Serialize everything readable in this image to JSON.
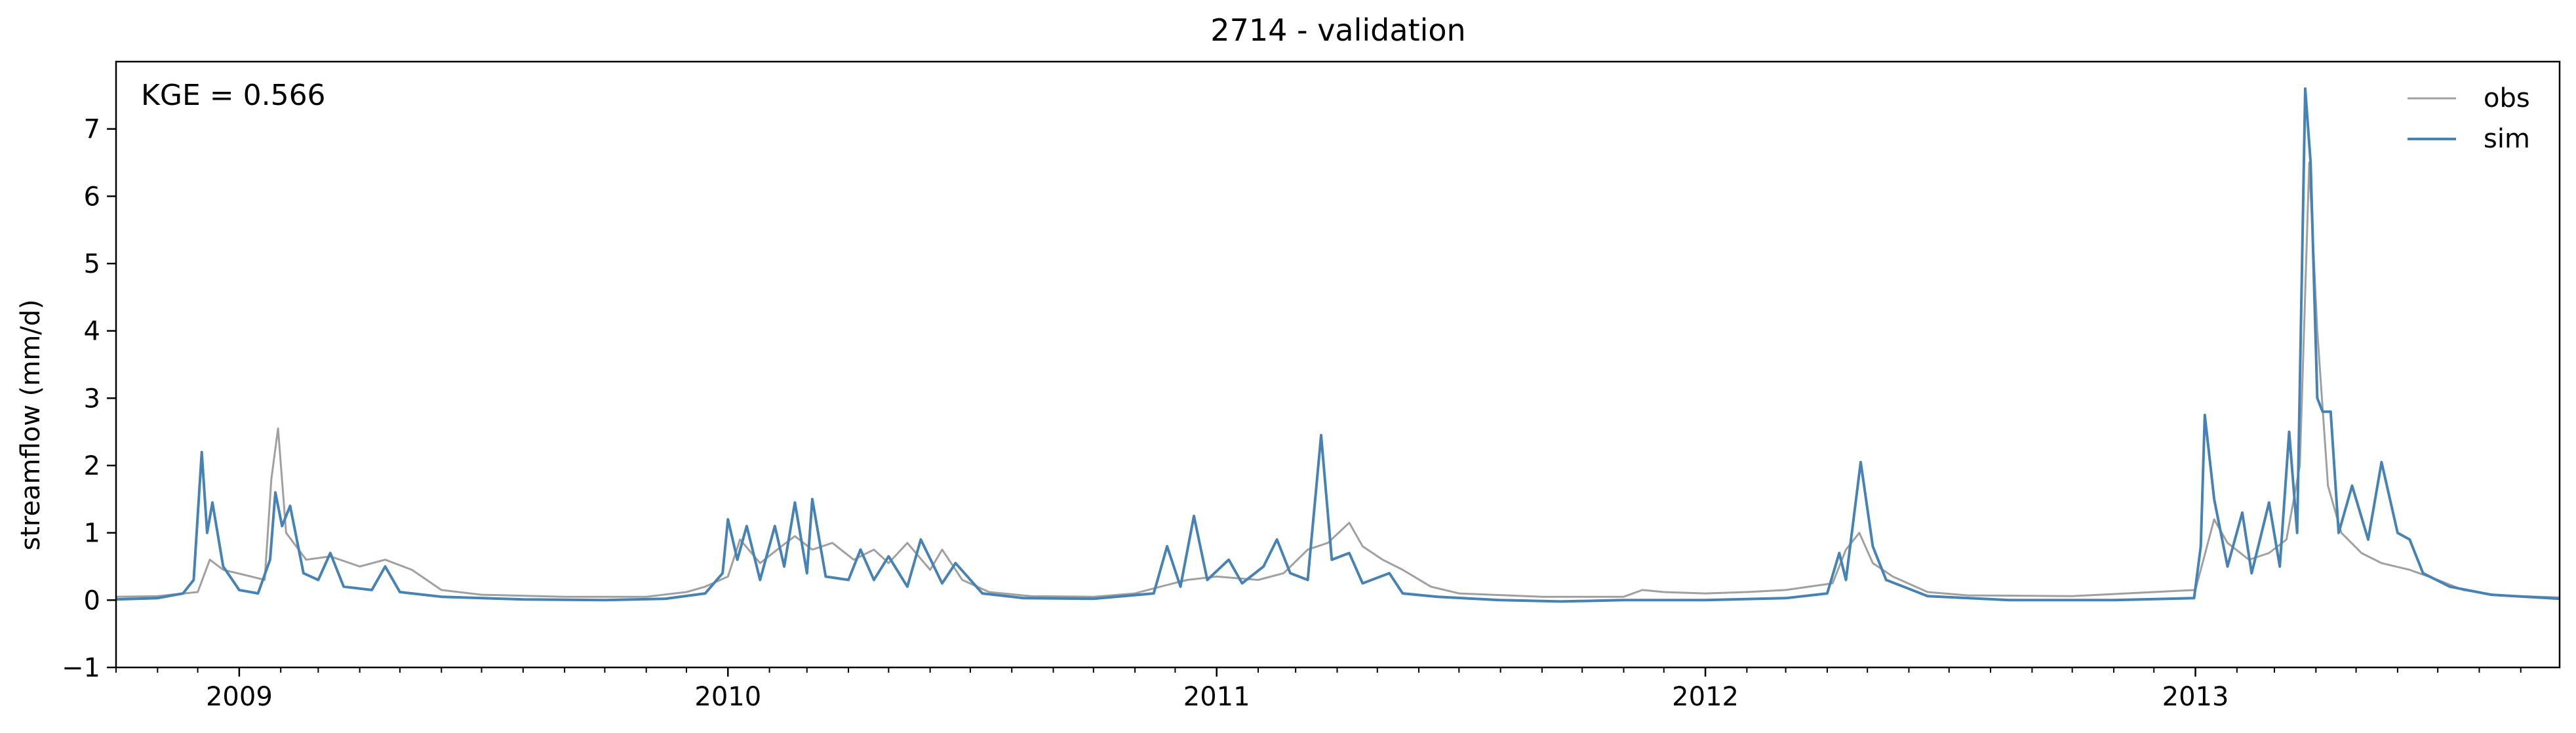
{
  "chart_data": {
    "type": "line",
    "title": "2714 - validation",
    "annotation": "KGE = 0.566",
    "xlabel": "",
    "ylabel": "streamflow (mm/d)",
    "xlim": [
      "2008-10-01",
      "2013-09-30"
    ],
    "ylim": [
      -1,
      8
    ],
    "y_ticks": [
      -1,
      0,
      1,
      2,
      3,
      4,
      5,
      6,
      7
    ],
    "x_ticks": [
      {
        "date": "2009-01-01",
        "label": "2009"
      },
      {
        "date": "2010-01-01",
        "label": "2010"
      },
      {
        "date": "2011-01-01",
        "label": "2011"
      },
      {
        "date": "2012-01-01",
        "label": "2012"
      },
      {
        "date": "2013-01-01",
        "label": "2013"
      }
    ],
    "grid": false,
    "legend_position": "upper right",
    "series": [
      {
        "name": "obs",
        "color": "#a0a0a0",
        "points": [
          [
            "2008-10-01",
            0.05
          ],
          [
            "2008-11-01",
            0.06
          ],
          [
            "2008-12-01",
            0.12
          ],
          [
            "2008-12-10",
            0.6
          ],
          [
            "2008-12-20",
            0.45
          ],
          [
            "2009-01-10",
            0.35
          ],
          [
            "2009-01-20",
            0.3
          ],
          [
            "2009-01-25",
            1.8
          ],
          [
            "2009-01-30",
            2.55
          ],
          [
            "2009-02-05",
            1.0
          ],
          [
            "2009-02-20",
            0.6
          ],
          [
            "2009-03-10",
            0.65
          ],
          [
            "2009-04-01",
            0.5
          ],
          [
            "2009-04-20",
            0.6
          ],
          [
            "2009-05-10",
            0.45
          ],
          [
            "2009-06-01",
            0.15
          ],
          [
            "2009-07-01",
            0.08
          ],
          [
            "2009-09-01",
            0.05
          ],
          [
            "2009-11-01",
            0.05
          ],
          [
            "2009-12-01",
            0.12
          ],
          [
            "2009-12-15",
            0.2
          ],
          [
            "2010-01-01",
            0.35
          ],
          [
            "2010-01-10",
            0.9
          ],
          [
            "2010-01-25",
            0.55
          ],
          [
            "2010-02-10",
            0.8
          ],
          [
            "2010-02-20",
            0.95
          ],
          [
            "2010-03-05",
            0.75
          ],
          [
            "2010-03-20",
            0.85
          ],
          [
            "2010-04-05",
            0.6
          ],
          [
            "2010-04-20",
            0.75
          ],
          [
            "2010-05-01",
            0.55
          ],
          [
            "2010-05-15",
            0.85
          ],
          [
            "2010-06-01",
            0.45
          ],
          [
            "2010-06-10",
            0.75
          ],
          [
            "2010-06-25",
            0.3
          ],
          [
            "2010-07-15",
            0.12
          ],
          [
            "2010-08-15",
            0.06
          ],
          [
            "2010-10-01",
            0.05
          ],
          [
            "2010-11-01",
            0.1
          ],
          [
            "2010-11-20",
            0.2
          ],
          [
            "2010-12-10",
            0.3
          ],
          [
            "2011-01-01",
            0.35
          ],
          [
            "2011-02-01",
            0.3
          ],
          [
            "2011-02-20",
            0.4
          ],
          [
            "2011-03-10",
            0.75
          ],
          [
            "2011-03-25",
            0.85
          ],
          [
            "2011-04-10",
            1.15
          ],
          [
            "2011-04-20",
            0.8
          ],
          [
            "2011-05-05",
            0.6
          ],
          [
            "2011-05-20",
            0.45
          ],
          [
            "2011-06-10",
            0.2
          ],
          [
            "2011-07-01",
            0.1
          ],
          [
            "2011-09-01",
            0.05
          ],
          [
            "2011-11-01",
            0.05
          ],
          [
            "2011-11-15",
            0.15
          ],
          [
            "2011-12-01",
            0.12
          ],
          [
            "2012-01-01",
            0.1
          ],
          [
            "2012-02-01",
            0.12
          ],
          [
            "2012-03-01",
            0.15
          ],
          [
            "2012-04-05",
            0.25
          ],
          [
            "2012-04-15",
            0.75
          ],
          [
            "2012-04-25",
            1.0
          ],
          [
            "2012-05-05",
            0.55
          ],
          [
            "2012-05-20",
            0.35
          ],
          [
            "2012-06-15",
            0.12
          ],
          [
            "2012-07-15",
            0.07
          ],
          [
            "2012-10-01",
            0.06
          ],
          [
            "2012-12-01",
            0.12
          ],
          [
            "2013-01-01",
            0.15
          ],
          [
            "2013-01-15",
            1.2
          ],
          [
            "2013-01-25",
            0.85
          ],
          [
            "2013-02-10",
            0.6
          ],
          [
            "2013-02-25",
            0.7
          ],
          [
            "2013-03-10",
            0.9
          ],
          [
            "2013-03-20",
            2.0
          ],
          [
            "2013-03-27",
            6.5
          ],
          [
            "2013-04-02",
            4.0
          ],
          [
            "2013-04-10",
            1.7
          ],
          [
            "2013-04-20",
            1.0
          ],
          [
            "2013-05-05",
            0.7
          ],
          [
            "2013-05-20",
            0.55
          ],
          [
            "2013-06-10",
            0.45
          ],
          [
            "2013-07-01",
            0.3
          ],
          [
            "2013-07-20",
            0.15
          ],
          [
            "2013-08-15",
            0.07
          ],
          [
            "2013-09-30",
            0.04
          ]
        ]
      },
      {
        "name": "sim",
        "color": "#4682b4",
        "points": [
          [
            "2008-10-01",
            0.01
          ],
          [
            "2008-11-01",
            0.03
          ],
          [
            "2008-11-20",
            0.1
          ],
          [
            "2008-11-28",
            0.3
          ],
          [
            "2008-12-04",
            2.2
          ],
          [
            "2008-12-08",
            1.0
          ],
          [
            "2008-12-12",
            1.45
          ],
          [
            "2008-12-20",
            0.5
          ],
          [
            "2009-01-01",
            0.15
          ],
          [
            "2009-01-15",
            0.1
          ],
          [
            "2009-01-24",
            0.6
          ],
          [
            "2009-01-28",
            1.6
          ],
          [
            "2009-02-02",
            1.1
          ],
          [
            "2009-02-08",
            1.4
          ],
          [
            "2009-02-18",
            0.4
          ],
          [
            "2009-03-01",
            0.3
          ],
          [
            "2009-03-10",
            0.7
          ],
          [
            "2009-03-20",
            0.2
          ],
          [
            "2009-04-10",
            0.15
          ],
          [
            "2009-04-20",
            0.5
          ],
          [
            "2009-05-01",
            0.12
          ],
          [
            "2009-06-01",
            0.05
          ],
          [
            "2009-08-01",
            0.01
          ],
          [
            "2009-10-01",
            0.0
          ],
          [
            "2009-11-15",
            0.02
          ],
          [
            "2009-12-15",
            0.1
          ],
          [
            "2009-12-28",
            0.4
          ],
          [
            "2010-01-01",
            1.2
          ],
          [
            "2010-01-08",
            0.6
          ],
          [
            "2010-01-15",
            1.1
          ],
          [
            "2010-01-25",
            0.3
          ],
          [
            "2010-02-05",
            1.1
          ],
          [
            "2010-02-12",
            0.5
          ],
          [
            "2010-02-20",
            1.45
          ],
          [
            "2010-03-01",
            0.4
          ],
          [
            "2010-03-05",
            1.5
          ],
          [
            "2010-03-15",
            0.35
          ],
          [
            "2010-04-01",
            0.3
          ],
          [
            "2010-04-10",
            0.75
          ],
          [
            "2010-04-20",
            0.3
          ],
          [
            "2010-05-01",
            0.65
          ],
          [
            "2010-05-15",
            0.2
          ],
          [
            "2010-05-25",
            0.9
          ],
          [
            "2010-06-10",
            0.25
          ],
          [
            "2010-06-20",
            0.55
          ],
          [
            "2010-07-10",
            0.1
          ],
          [
            "2010-08-10",
            0.03
          ],
          [
            "2010-10-01",
            0.02
          ],
          [
            "2010-11-15",
            0.1
          ],
          [
            "2010-11-25",
            0.8
          ],
          [
            "2010-12-05",
            0.2
          ],
          [
            "2010-12-15",
            1.25
          ],
          [
            "2010-12-25",
            0.3
          ],
          [
            "2011-01-10",
            0.6
          ],
          [
            "2011-01-20",
            0.25
          ],
          [
            "2011-02-05",
            0.5
          ],
          [
            "2011-02-15",
            0.9
          ],
          [
            "2011-02-25",
            0.4
          ],
          [
            "2011-03-10",
            0.3
          ],
          [
            "2011-03-20",
            2.45
          ],
          [
            "2011-03-28",
            0.6
          ],
          [
            "2011-04-10",
            0.7
          ],
          [
            "2011-04-20",
            0.25
          ],
          [
            "2011-05-10",
            0.4
          ],
          [
            "2011-05-20",
            0.1
          ],
          [
            "2011-06-15",
            0.05
          ],
          [
            "2011-08-01",
            0.0
          ],
          [
            "2011-09-15",
            -0.02
          ],
          [
            "2011-11-01",
            0.0
          ],
          [
            "2012-01-01",
            0.0
          ],
          [
            "2012-03-01",
            0.03
          ],
          [
            "2012-04-01",
            0.1
          ],
          [
            "2012-04-10",
            0.7
          ],
          [
            "2012-04-15",
            0.3
          ],
          [
            "2012-04-26",
            2.05
          ],
          [
            "2012-05-05",
            0.8
          ],
          [
            "2012-05-15",
            0.3
          ],
          [
            "2012-06-15",
            0.06
          ],
          [
            "2012-08-15",
            0.0
          ],
          [
            "2012-11-01",
            0.0
          ],
          [
            "2012-12-31",
            0.03
          ],
          [
            "2013-01-05",
            0.8
          ],
          [
            "2013-01-08",
            2.75
          ],
          [
            "2013-01-15",
            1.5
          ],
          [
            "2013-01-25",
            0.5
          ],
          [
            "2013-02-05",
            1.3
          ],
          [
            "2013-02-12",
            0.4
          ],
          [
            "2013-02-25",
            1.45
          ],
          [
            "2013-03-05",
            0.5
          ],
          [
            "2013-03-12",
            2.5
          ],
          [
            "2013-03-18",
            1.0
          ],
          [
            "2013-03-24",
            7.6
          ],
          [
            "2013-03-28",
            6.5
          ],
          [
            "2013-04-02",
            3.0
          ],
          [
            "2013-04-06",
            2.8
          ],
          [
            "2013-04-12",
            2.8
          ],
          [
            "2013-04-18",
            1.0
          ],
          [
            "2013-04-28",
            1.7
          ],
          [
            "2013-05-10",
            0.9
          ],
          [
            "2013-05-20",
            2.05
          ],
          [
            "2013-06-01",
            1.0
          ],
          [
            "2013-06-10",
            0.9
          ],
          [
            "2013-06-20",
            0.4
          ],
          [
            "2013-07-10",
            0.2
          ],
          [
            "2013-08-10",
            0.08
          ],
          [
            "2013-09-30",
            0.02
          ]
        ]
      }
    ]
  }
}
